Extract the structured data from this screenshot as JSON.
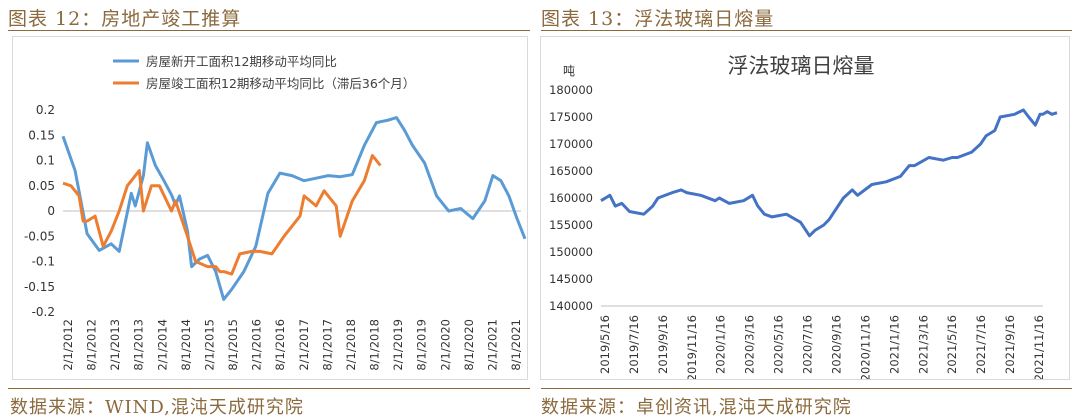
{
  "figures": [
    {
      "title": "图表 12：房地产竣工推算",
      "source": "数据来源：WIND,混沌天成研究院"
    },
    {
      "title": "图表 13：浮法玻璃日熔量",
      "source": "数据来源：卓创资讯,混沌天成研究院"
    }
  ],
  "colors": {
    "accent": "#8b6a3e",
    "series_blue": "#5b9bd5",
    "series_orange": "#ed7d31",
    "series_dark_blue": "#4472c4"
  },
  "chart_data": [
    {
      "type": "line",
      "title": "",
      "xlabel": "",
      "ylabel": "",
      "ylim": [
        -0.2,
        0.2
      ],
      "yticks": [
        "0.2",
        "0.15",
        "0.1",
        "0.05",
        "0",
        "-0.05",
        "-0.1",
        "-0.15",
        "-0.2"
      ],
      "xticks": [
        "2/1/2012",
        "8/1/2012",
        "2/1/2013",
        "8/1/2013",
        "2/1/2014",
        "8/1/2014",
        "2/1/2015",
        "8/1/2015",
        "2/1/2016",
        "8/1/2016",
        "2/1/2017",
        "8/1/2017",
        "2/1/2018",
        "8/1/2018",
        "2/1/2019",
        "8/1/2019",
        "2/1/2020",
        "8/1/2020",
        "2/1/2021",
        "8/1/2021"
      ],
      "x_start": "2012-02",
      "x_end": "2021-08",
      "legend": "top-left",
      "grid": false,
      "series": [
        {
          "name": "房屋新开工面积12期移动平均同比",
          "points": [
            [
              "2012-02",
              0.148
            ],
            [
              "2012-05",
              0.08
            ],
            [
              "2012-08",
              -0.045
            ],
            [
              "2012-11",
              -0.078
            ],
            [
              "2013-02",
              -0.065
            ],
            [
              "2013-04",
              -0.08
            ],
            [
              "2013-07",
              0.035
            ],
            [
              "2013-08",
              0.01
            ],
            [
              "2013-10",
              0.07
            ],
            [
              "2013-11",
              0.135
            ],
            [
              "2014-01",
              0.09
            ],
            [
              "2014-03",
              0.062
            ],
            [
              "2014-05",
              0.032
            ],
            [
              "2014-06",
              0.012
            ],
            [
              "2014-07",
              0.03
            ],
            [
              "2014-08",
              -0.005
            ],
            [
              "2014-09",
              -0.04
            ],
            [
              "2014-10",
              -0.11
            ],
            [
              "2014-12",
              -0.095
            ],
            [
              "2015-02",
              -0.088
            ],
            [
              "2015-04",
              -0.12
            ],
            [
              "2015-06",
              -0.175
            ],
            [
              "2015-08",
              -0.155
            ],
            [
              "2015-11",
              -0.12
            ],
            [
              "2016-02",
              -0.07
            ],
            [
              "2016-05",
              0.035
            ],
            [
              "2016-08",
              0.075
            ],
            [
              "2016-11",
              0.07
            ],
            [
              "2017-02",
              0.06
            ],
            [
              "2017-05",
              0.065
            ],
            [
              "2017-08",
              0.07
            ],
            [
              "2017-11",
              0.068
            ],
            [
              "2018-02",
              0.072
            ],
            [
              "2018-05",
              0.13
            ],
            [
              "2018-08",
              0.175
            ],
            [
              "2018-11",
              0.18
            ],
            [
              "2019-01",
              0.185
            ],
            [
              "2019-03",
              0.16
            ],
            [
              "2019-05",
              0.13
            ],
            [
              "2019-08",
              0.095
            ],
            [
              "2019-11",
              0.03
            ],
            [
              "2020-02",
              0.0
            ],
            [
              "2020-05",
              0.005
            ],
            [
              "2020-08",
              -0.015
            ],
            [
              "2020-11",
              0.02
            ],
            [
              "2021-01",
              0.07
            ],
            [
              "2021-03",
              0.06
            ],
            [
              "2021-05",
              0.03
            ],
            [
              "2021-07",
              -0.015
            ],
            [
              "2021-09",
              -0.055
            ]
          ]
        },
        {
          "name": "房屋竣工面积12期移动平均同比（滞后36个月）",
          "points": [
            [
              "2012-02",
              0.055
            ],
            [
              "2012-04",
              0.05
            ],
            [
              "2012-06",
              0.03
            ],
            [
              "2012-07",
              -0.02
            ],
            [
              "2012-08",
              -0.02
            ],
            [
              "2012-10",
              -0.01
            ],
            [
              "2012-12",
              -0.07
            ],
            [
              "2013-02",
              -0.04
            ],
            [
              "2013-04",
              0.0
            ],
            [
              "2013-06",
              0.05
            ],
            [
              "2013-09",
              0.08
            ],
            [
              "2013-10",
              0.0
            ],
            [
              "2013-12",
              0.05
            ],
            [
              "2014-02",
              0.05
            ],
            [
              "2014-05",
              0.0
            ],
            [
              "2014-06",
              0.02
            ],
            [
              "2014-09",
              -0.05
            ],
            [
              "2014-11",
              -0.1
            ],
            [
              "2015-02",
              -0.11
            ],
            [
              "2015-04",
              -0.11
            ],
            [
              "2015-05",
              -0.12
            ],
            [
              "2015-06",
              -0.12
            ],
            [
              "2015-08",
              -0.125
            ],
            [
              "2015-10",
              -0.085
            ],
            [
              "2016-01",
              -0.08
            ],
            [
              "2016-03",
              -0.08
            ],
            [
              "2016-06",
              -0.085
            ],
            [
              "2016-09",
              -0.05
            ],
            [
              "2017-01",
              -0.01
            ],
            [
              "2017-02",
              0.03
            ],
            [
              "2017-05",
              0.01
            ],
            [
              "2017-07",
              0.04
            ],
            [
              "2017-08",
              0.03
            ],
            [
              "2017-10",
              0.01
            ],
            [
              "2017-11",
              -0.05
            ],
            [
              "2018-02",
              0.02
            ],
            [
              "2018-05",
              0.06
            ],
            [
              "2018-07",
              0.11
            ],
            [
              "2018-09",
              0.09
            ]
          ]
        }
      ]
    },
    {
      "type": "line",
      "title": "浮法玻璃日熔量",
      "ylabel": "吨",
      "xlabel": "",
      "ylim": [
        140000,
        180000
      ],
      "yticks": [
        "180000",
        "175000",
        "170000",
        "165000",
        "160000",
        "155000",
        "150000",
        "145000",
        "140000"
      ],
      "xticks": [
        "2019/5/16",
        "2019/7/16",
        "2019/9/16",
        "2019/11/16",
        "2020/1/16",
        "2020/3/16",
        "2020/5/16",
        "2020/7/16",
        "2020/9/16",
        "2020/11/16",
        "2021/1/16",
        "2021/3/16",
        "2021/5/16",
        "2021/7/16",
        "2021/9/16",
        "2021/11/16"
      ],
      "x_start": "2019-05",
      "x_end": "2021-12",
      "legend": "none",
      "grid": false,
      "series": [
        {
          "name": "",
          "points": [
            [
              "2019-05",
              159500
            ],
            [
              "2019-05-20",
              160500
            ],
            [
              "2019-06",
              158500
            ],
            [
              "2019-06-15",
              159000
            ],
            [
              "2019-07",
              157500
            ],
            [
              "2019-08",
              157000
            ],
            [
              "2019-08-20",
              158500
            ],
            [
              "2019-09",
              160000
            ],
            [
              "2019-10",
              161000
            ],
            [
              "2019-10-20",
              161500
            ],
            [
              "2019-11",
              161000
            ],
            [
              "2019-12",
              160500
            ],
            [
              "2020-01",
              159500
            ],
            [
              "2020-01-10",
              160000
            ],
            [
              "2020-02",
              159000
            ],
            [
              "2020-03",
              159500
            ],
            [
              "2020-03-20",
              160500
            ],
            [
              "2020-04",
              158500
            ],
            [
              "2020-04-15",
              157000
            ],
            [
              "2020-05",
              156500
            ],
            [
              "2020-06",
              157000
            ],
            [
              "2020-07",
              155500
            ],
            [
              "2020-07-20",
              153000
            ],
            [
              "2020-08",
              154000
            ],
            [
              "2020-08-20",
              155000
            ],
            [
              "2020-09",
              156000
            ],
            [
              "2020-10",
              160000
            ],
            [
              "2020-10-20",
              161500
            ],
            [
              "2020-11",
              160500
            ],
            [
              "2020-12",
              162500
            ],
            [
              "2021-01",
              163000
            ],
            [
              "2021-02",
              164000
            ],
            [
              "2021-02-20",
              166000
            ],
            [
              "2021-03",
              166000
            ],
            [
              "2021-04",
              167500
            ],
            [
              "2021-05",
              167000
            ],
            [
              "2021-05-20",
              167500
            ],
            [
              "2021-06",
              167500
            ],
            [
              "2021-07",
              168500
            ],
            [
              "2021-07-20",
              170000
            ],
            [
              "2021-08",
              171500
            ],
            [
              "2021-08-20",
              172500
            ],
            [
              "2021-09",
              175000
            ],
            [
              "2021-10",
              175500
            ],
            [
              "2021-10-20",
              176300
            ],
            [
              "2021-11",
              175000
            ],
            [
              "2021-11-15",
              173500
            ],
            [
              "2021-11-25",
              175500
            ],
            [
              "2021-12",
              175500
            ],
            [
              "2021-12-10",
              176000
            ],
            [
              "2021-12-20",
              175500
            ],
            [
              "2021-12-31",
              175800
            ]
          ]
        }
      ]
    }
  ]
}
